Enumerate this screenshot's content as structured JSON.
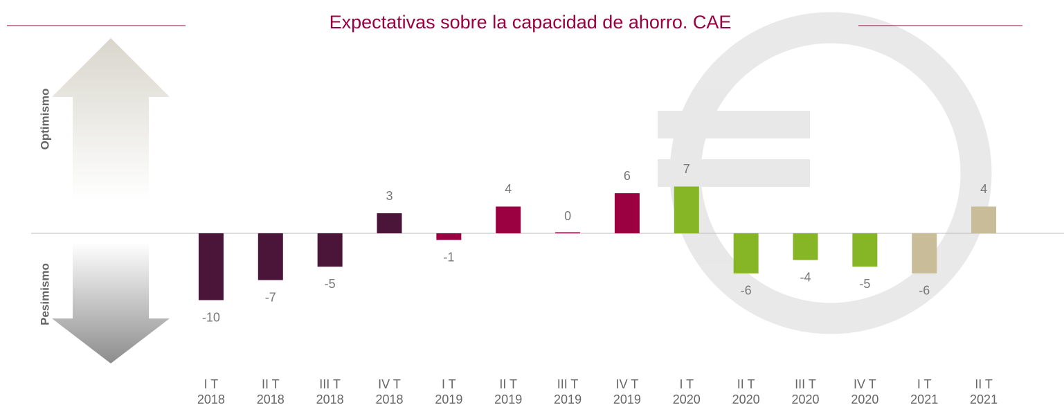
{
  "chart_data": {
    "type": "bar",
    "title": "Expectativas sobre la capacidad de ahorro. CAE",
    "annotations": [
      "Optimismo",
      "Pesimismo"
    ],
    "categories": [
      "I T\n2018",
      "II T\n2018",
      "III T\n2018",
      "IV T\n2018",
      "I T\n2019",
      "II T\n2019",
      "III T\n2019",
      "IV T\n2019",
      "I T\n2020",
      "II T\n2020",
      "III T\n2020",
      "IV T\n2020",
      "I T\n2021",
      "II T\n2021"
    ],
    "values": [
      -10,
      -7,
      -5,
      3,
      -1,
      4,
      0,
      6,
      7,
      -6,
      -4,
      -5,
      -6,
      4
    ],
    "colors": [
      "#4a1538",
      "#4a1538",
      "#4a1538",
      "#4a1538",
      "#9b0040",
      "#9b0040",
      "#9b0040",
      "#9b0040",
      "#86b525",
      "#86b525",
      "#86b525",
      "#86b525",
      "#c8bd98",
      "#c8bd98"
    ],
    "ylim": [
      -20,
      30
    ]
  }
}
